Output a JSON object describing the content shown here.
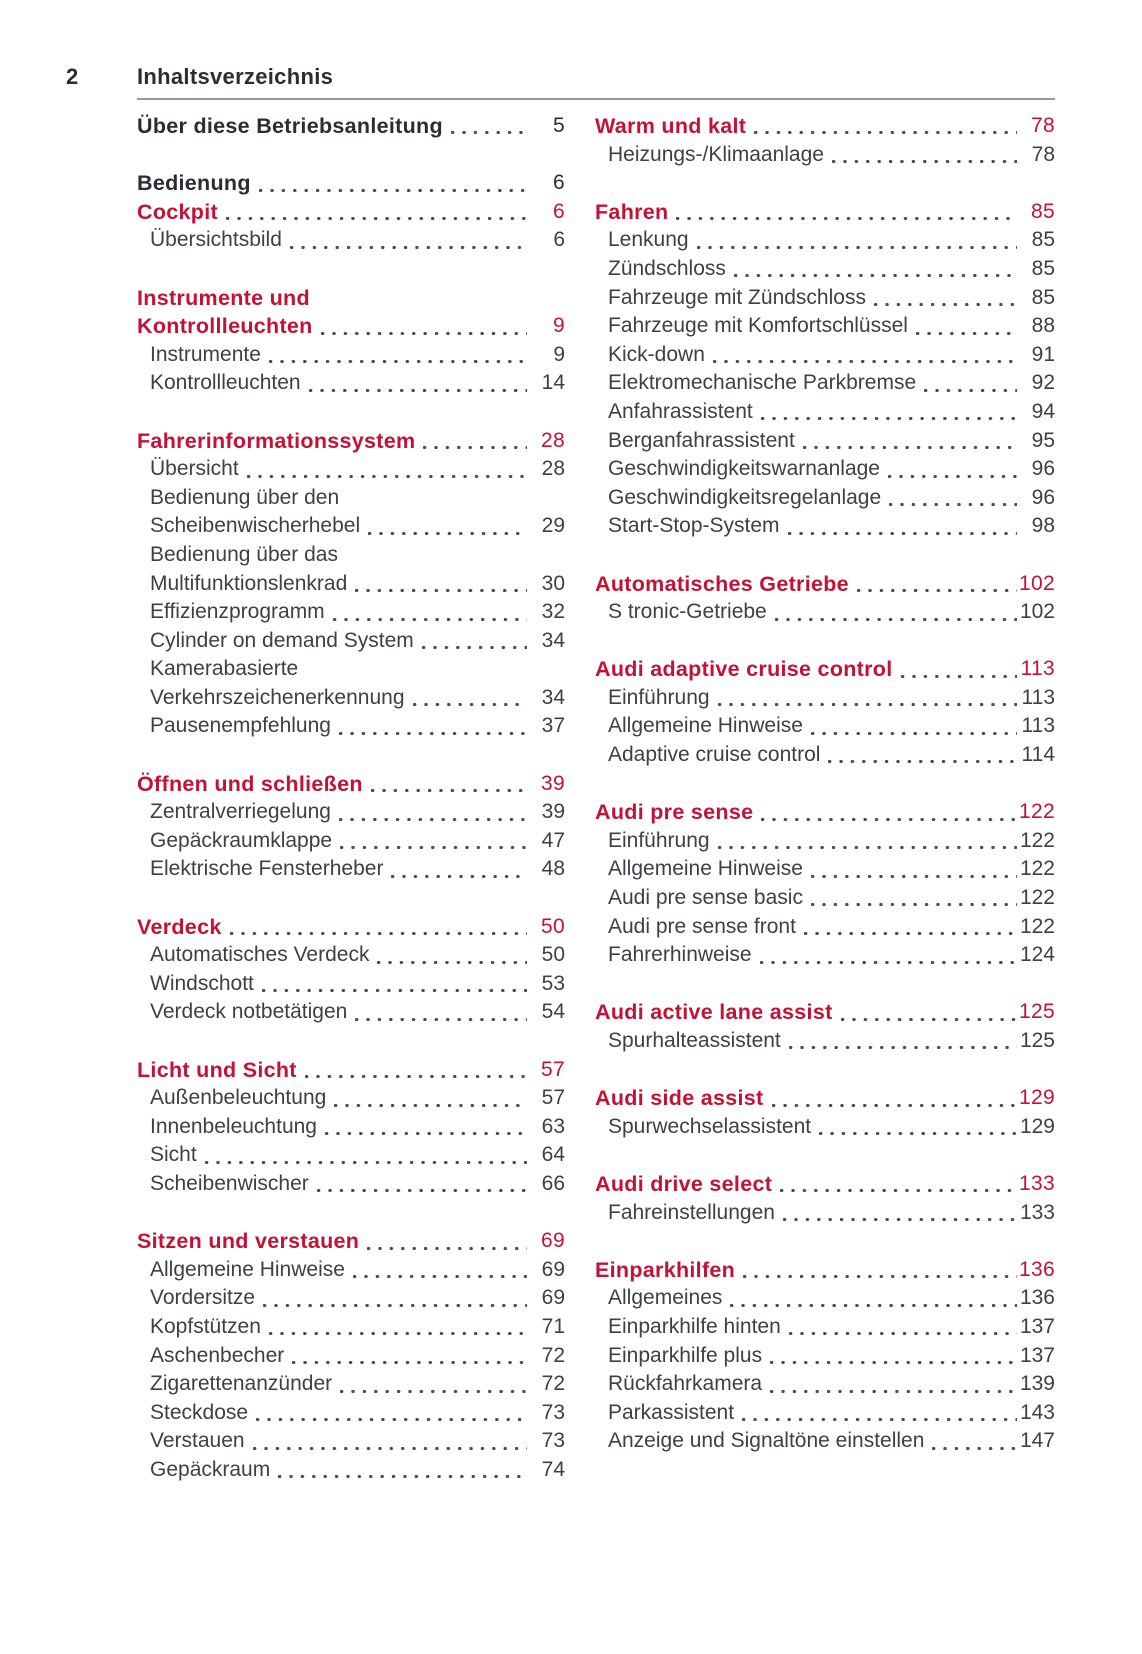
{
  "header": {
    "page_number": "2",
    "title": "Inhaltsverzeichnis"
  },
  "colors": {
    "red": "#c41237",
    "dark": "#2a2d31",
    "body": "#3d4145",
    "dot": "#4a4d50",
    "rule": "#97999b",
    "bg": "#ffffff"
  },
  "toc": {
    "left_sections": [
      {
        "rows": [
          {
            "text": "Über diese Betriebsanleitung",
            "page": "5",
            "heading": true,
            "red": false
          }
        ]
      },
      {
        "rows": [
          {
            "text": "Bedienung",
            "page": "6",
            "heading": true,
            "red": false
          },
          {
            "text": "Cockpit",
            "page": "6",
            "heading": true,
            "red": true
          },
          {
            "text": "Übersichtsbild",
            "page": "6",
            "heading": false,
            "red": false
          }
        ]
      },
      {
        "rows": [
          {
            "text": "Instrumente und",
            "heading": true,
            "red": true
          },
          {
            "text": "Kontrollleuchten",
            "page": "9",
            "heading": true,
            "red": true
          },
          {
            "text": "Instrumente",
            "page": "9",
            "heading": false,
            "red": false
          },
          {
            "text": "Kontrollleuchten",
            "page": "14",
            "heading": false,
            "red": false
          }
        ]
      },
      {
        "rows": [
          {
            "text": "Fahrerinformationssystem",
            "page": "28",
            "heading": true,
            "red": true
          },
          {
            "text": "Übersicht",
            "page": "28",
            "heading": false,
            "red": false
          },
          {
            "text": "Bedienung über den",
            "heading": false,
            "red": false
          },
          {
            "text": "Scheibenwischerhebel",
            "page": "29",
            "heading": false,
            "red": false
          },
          {
            "text": "Bedienung über das",
            "heading": false,
            "red": false
          },
          {
            "text": "Multifunktionslenkrad",
            "page": "30",
            "heading": false,
            "red": false
          },
          {
            "text": "Effizienzprogramm",
            "page": "32",
            "heading": false,
            "red": false
          },
          {
            "text": "Cylinder on demand System",
            "page": "34",
            "heading": false,
            "red": false
          },
          {
            "text": "Kamerabasierte",
            "heading": false,
            "red": false
          },
          {
            "text": "Verkehrszeichenerkennung",
            "page": "34",
            "heading": false,
            "red": false
          },
          {
            "text": "Pausenempfehlung",
            "page": "37",
            "heading": false,
            "red": false
          }
        ]
      },
      {
        "rows": [
          {
            "text": "Öffnen und schließen",
            "page": "39",
            "heading": true,
            "red": true
          },
          {
            "text": "Zentralverriegelung",
            "page": "39",
            "heading": false,
            "red": false
          },
          {
            "text": "Gepäckraumklappe",
            "page": "47",
            "heading": false,
            "red": false
          },
          {
            "text": "Elektrische Fensterheber",
            "page": "48",
            "heading": false,
            "red": false
          }
        ]
      },
      {
        "rows": [
          {
            "text": "Verdeck",
            "page": "50",
            "heading": true,
            "red": true
          },
          {
            "text": "Automatisches Verdeck",
            "page": "50",
            "heading": false,
            "red": false
          },
          {
            "text": "Windschott",
            "page": "53",
            "heading": false,
            "red": false
          },
          {
            "text": "Verdeck notbetätigen",
            "page": "54",
            "heading": false,
            "red": false
          }
        ]
      },
      {
        "rows": [
          {
            "text": "Licht und Sicht",
            "page": "57",
            "heading": true,
            "red": true
          },
          {
            "text": "Außenbeleuchtung",
            "page": "57",
            "heading": false,
            "red": false
          },
          {
            "text": "Innenbeleuchtung",
            "page": "63",
            "heading": false,
            "red": false
          },
          {
            "text": "Sicht",
            "page": "64",
            "heading": false,
            "red": false
          },
          {
            "text": "Scheibenwischer",
            "page": "66",
            "heading": false,
            "red": false
          }
        ]
      },
      {
        "rows": [
          {
            "text": "Sitzen und verstauen",
            "page": "69",
            "heading": true,
            "red": true
          },
          {
            "text": "Allgemeine Hinweise",
            "page": "69",
            "heading": false,
            "red": false
          },
          {
            "text": "Vordersitze",
            "page": "69",
            "heading": false,
            "red": false
          },
          {
            "text": "Kopfstützen",
            "page": "71",
            "heading": false,
            "red": false
          },
          {
            "text": "Aschenbecher",
            "page": "72",
            "heading": false,
            "red": false
          },
          {
            "text": "Zigarettenanzünder",
            "page": "72",
            "heading": false,
            "red": false
          },
          {
            "text": "Steckdose",
            "page": "73",
            "heading": false,
            "red": false
          },
          {
            "text": "Verstauen",
            "page": "73",
            "heading": false,
            "red": false
          },
          {
            "text": "Gepäckraum",
            "page": "74",
            "heading": false,
            "red": false
          }
        ]
      }
    ],
    "right_sections": [
      {
        "rows": [
          {
            "text": "Warm und kalt",
            "page": "78",
            "heading": true,
            "red": true
          },
          {
            "text": "Heizungs-/Klimaanlage",
            "page": "78",
            "heading": false,
            "red": false
          }
        ]
      },
      {
        "rows": [
          {
            "text": "Fahren",
            "page": "85",
            "heading": true,
            "red": true
          },
          {
            "text": "Lenkung",
            "page": "85",
            "heading": false,
            "red": false
          },
          {
            "text": "Zündschloss",
            "page": "85",
            "heading": false,
            "red": false
          },
          {
            "text": "Fahrzeuge mit Zündschloss",
            "page": "85",
            "heading": false,
            "red": false
          },
          {
            "text": "Fahrzeuge mit Komfortschlüssel",
            "page": "88",
            "heading": false,
            "red": false
          },
          {
            "text": "Kick-down",
            "page": "91",
            "heading": false,
            "red": false
          },
          {
            "text": "Elektromechanische Parkbremse",
            "page": "92",
            "heading": false,
            "red": false
          },
          {
            "text": "Anfahrassistent",
            "page": "94",
            "heading": false,
            "red": false
          },
          {
            "text": "Berganfahrassistent",
            "page": "95",
            "heading": false,
            "red": false
          },
          {
            "text": "Geschwindigkeitswarnanlage",
            "page": "96",
            "heading": false,
            "red": false
          },
          {
            "text": "Geschwindigkeitsregelanlage",
            "page": "96",
            "heading": false,
            "red": false
          },
          {
            "text": "Start-Stop-System",
            "page": "98",
            "heading": false,
            "red": false
          }
        ]
      },
      {
        "rows": [
          {
            "text": "Automatisches Getriebe",
            "page": "102",
            "heading": true,
            "red": true
          },
          {
            "text": "S tronic-Getriebe",
            "page": "102",
            "heading": false,
            "red": false
          }
        ]
      },
      {
        "rows": [
          {
            "text": "Audi adaptive cruise control",
            "page": "113",
            "heading": true,
            "red": true
          },
          {
            "text": "Einführung",
            "page": "113",
            "heading": false,
            "red": false
          },
          {
            "text": "Allgemeine Hinweise",
            "page": "113",
            "heading": false,
            "red": false
          },
          {
            "text": "Adaptive cruise control",
            "page": "114",
            "heading": false,
            "red": false
          }
        ]
      },
      {
        "rows": [
          {
            "text": "Audi pre sense",
            "page": "122",
            "heading": true,
            "red": true
          },
          {
            "text": "Einführung",
            "page": "122",
            "heading": false,
            "red": false
          },
          {
            "text": "Allgemeine Hinweise",
            "page": "122",
            "heading": false,
            "red": false
          },
          {
            "text": "Audi pre sense basic",
            "page": "122",
            "heading": false,
            "red": false
          },
          {
            "text": "Audi pre sense front",
            "page": "122",
            "heading": false,
            "red": false
          },
          {
            "text": "Fahrerhinweise",
            "page": "124",
            "heading": false,
            "red": false
          }
        ]
      },
      {
        "rows": [
          {
            "text": "Audi active lane assist",
            "page": "125",
            "heading": true,
            "red": true
          },
          {
            "text": "Spurhalteassistent",
            "page": "125",
            "heading": false,
            "red": false
          }
        ]
      },
      {
        "rows": [
          {
            "text": "Audi side assist",
            "page": "129",
            "heading": true,
            "red": true
          },
          {
            "text": "Spurwechselassistent",
            "page": "129",
            "heading": false,
            "red": false
          }
        ]
      },
      {
        "rows": [
          {
            "text": "Audi drive select",
            "page": "133",
            "heading": true,
            "red": true
          },
          {
            "text": "Fahreinstellungen",
            "page": "133",
            "heading": false,
            "red": false
          }
        ]
      },
      {
        "rows": [
          {
            "text": "Einparkhilfen",
            "page": "136",
            "heading": true,
            "red": true
          },
          {
            "text": "Allgemeines",
            "page": "136",
            "heading": false,
            "red": false
          },
          {
            "text": "Einparkhilfe hinten",
            "page": "137",
            "heading": false,
            "red": false
          },
          {
            "text": "Einparkhilfe plus",
            "page": "137",
            "heading": false,
            "red": false
          },
          {
            "text": "Rückfahrkamera",
            "page": "139",
            "heading": false,
            "red": false
          },
          {
            "text": "Parkassistent",
            "page": "143",
            "heading": false,
            "red": false
          },
          {
            "text": "Anzeige und Signaltöne einstellen",
            "page": "147",
            "heading": false,
            "red": false
          }
        ]
      }
    ]
  }
}
